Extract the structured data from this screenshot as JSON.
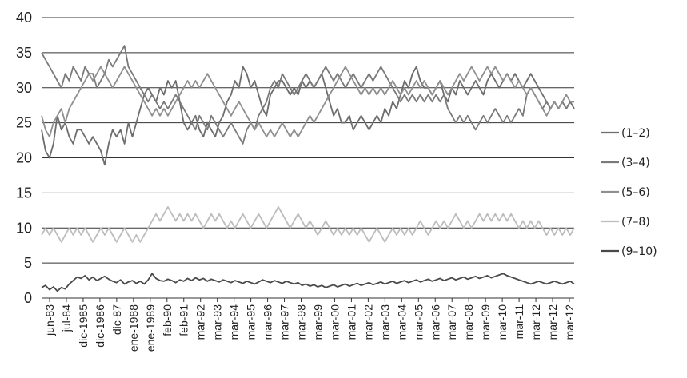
{
  "chart_data": {
    "type": "line",
    "title": "",
    "xlabel": "",
    "ylabel": "",
    "ylim": [
      0,
      40
    ],
    "yticks": [
      0,
      5,
      10,
      15,
      20,
      25,
      30,
      35,
      40
    ],
    "grid": true,
    "legend_position": "right",
    "x_tick_labels": [
      "jun-83",
      "jul-84",
      "dic-1985",
      "dic-1986",
      "dic-87",
      "ene-1988",
      "ene-1989",
      "feb-90",
      "feb-91",
      "mar-92",
      "mar-93",
      "mar-94",
      "mar-95",
      "mar-96",
      "mar-97",
      "mar-98",
      "mar-99",
      "mar-00",
      "mar-01",
      "mar-02",
      "mar-03",
      "mar-04",
      "mar-05",
      "mar-06",
      "mar-07",
      "mar-08",
      "mar-09",
      "mar-10",
      "mar-11",
      "mar-12",
      "mar-12",
      "mar-12"
    ],
    "series": [
      {
        "name": "(1–2)",
        "color": "#6d6d6d",
        "values": [
          24,
          21,
          20,
          22,
          26,
          24,
          25,
          23,
          22,
          24,
          24,
          23,
          22,
          23,
          22,
          21,
          19,
          22,
          24,
          23,
          24,
          22,
          25,
          23,
          25,
          27,
          29,
          30,
          29,
          28,
          30,
          29,
          31,
          30,
          31,
          28,
          25,
          24,
          25,
          26,
          24,
          23,
          25,
          24,
          23,
          25,
          26,
          28,
          29,
          31,
          30,
          33,
          32,
          30,
          31,
          29,
          27,
          26,
          29,
          30,
          31,
          31,
          30,
          29,
          30,
          29,
          31,
          30,
          31,
          30,
          31,
          32,
          30,
          28,
          26,
          27,
          25,
          25,
          26,
          24,
          25,
          26,
          25,
          24,
          25,
          26,
          25,
          27,
          26,
          28,
          27,
          29,
          31,
          30,
          32,
          33,
          31,
          30,
          30,
          29,
          30,
          31,
          29,
          28,
          30,
          29,
          31,
          30,
          29,
          30,
          31,
          30,
          29,
          31,
          32,
          31,
          30,
          31,
          32,
          31,
          32,
          31,
          30,
          31,
          32,
          31,
          30,
          29,
          28,
          27,
          28,
          27,
          28,
          27,
          28,
          27
        ]
      },
      {
        "name": "(3–4)",
        "color": "#7a7a7a",
        "values": [
          35,
          34,
          33,
          32,
          31,
          30,
          32,
          31,
          33,
          32,
          31,
          33,
          32,
          32,
          30,
          31,
          32,
          34,
          33,
          34,
          35,
          36,
          33,
          32,
          31,
          30,
          29,
          28,
          29,
          28,
          27,
          28,
          27,
          28,
          29,
          28,
          27,
          26,
          25,
          24,
          26,
          25,
          24,
          26,
          25,
          24,
          23,
          24,
          25,
          24,
          23,
          22,
          24,
          25,
          24,
          26,
          27,
          28,
          30,
          31,
          30,
          32,
          31,
          30,
          29,
          30,
          31,
          32,
          31,
          30,
          31,
          32,
          33,
          32,
          31,
          32,
          31,
          30,
          31,
          32,
          31,
          30,
          31,
          32,
          31,
          32,
          33,
          32,
          31,
          30,
          29,
          28,
          29,
          28,
          29,
          28,
          29,
          28,
          29,
          28,
          29,
          28,
          29,
          27,
          26,
          25,
          26,
          25,
          26,
          25,
          24,
          25,
          26,
          25,
          26,
          27,
          26,
          25,
          26,
          25,
          26,
          27,
          26,
          29,
          30,
          29,
          28,
          27,
          28,
          27,
          28,
          27,
          28,
          27,
          28,
          28
        ]
      },
      {
        "name": "(5–6)",
        "color": "#8f8f8f",
        "values": [
          26,
          24,
          23,
          25,
          26,
          27,
          25,
          27,
          28,
          29,
          30,
          31,
          32,
          31,
          32,
          33,
          32,
          31,
          30,
          31,
          32,
          33,
          32,
          31,
          30,
          29,
          28,
          27,
          26,
          27,
          26,
          27,
          26,
          27,
          28,
          29,
          30,
          31,
          30,
          31,
          30,
          31,
          32,
          31,
          30,
          29,
          28,
          27,
          26,
          27,
          28,
          27,
          26,
          25,
          24,
          25,
          24,
          23,
          24,
          23,
          24,
          25,
          24,
          23,
          24,
          23,
          24,
          25,
          26,
          25,
          26,
          27,
          28,
          29,
          30,
          31,
          32,
          33,
          32,
          31,
          30,
          29,
          30,
          29,
          30,
          29,
          30,
          29,
          30,
          31,
          30,
          29,
          30,
          29,
          30,
          31,
          30,
          31,
          30,
          29,
          30,
          31,
          30,
          29,
          30,
          31,
          32,
          31,
          32,
          33,
          32,
          31,
          32,
          33,
          32,
          33,
          32,
          31,
          32,
          31,
          30,
          31,
          30,
          29,
          30,
          29,
          28,
          27,
          26,
          27,
          28,
          27,
          28,
          29,
          28,
          28
        ]
      },
      {
        "name": "(7–8)",
        "color": "#bdbdbd",
        "values": [
          9,
          10,
          9,
          10,
          9,
          8,
          9,
          10,
          9,
          10,
          9,
          10,
          9,
          8,
          9,
          10,
          9,
          10,
          9,
          8,
          9,
          10,
          9,
          8,
          9,
          8,
          9,
          10,
          11,
          12,
          11,
          12,
          13,
          12,
          11,
          12,
          11,
          12,
          11,
          12,
          11,
          10,
          11,
          12,
          11,
          12,
          11,
          10,
          11,
          10,
          11,
          12,
          11,
          10,
          11,
          12,
          11,
          10,
          11,
          12,
          13,
          12,
          11,
          10,
          11,
          12,
          11,
          10,
          11,
          10,
          9,
          10,
          11,
          10,
          9,
          10,
          9,
          10,
          9,
          10,
          9,
          10,
          9,
          8,
          9,
          10,
          9,
          8,
          9,
          10,
          9,
          10,
          9,
          10,
          9,
          10,
          11,
          10,
          9,
          10,
          11,
          10,
          11,
          10,
          11,
          12,
          11,
          10,
          11,
          10,
          11,
          12,
          11,
          12,
          11,
          12,
          11,
          12,
          11,
          12,
          11,
          10,
          11,
          10,
          11,
          10,
          11,
          10,
          9,
          10,
          9,
          10,
          9,
          10,
          9,
          10
        ]
      },
      {
        "name": "(9–10)",
        "color": "#4a4a4a",
        "values": [
          1.5,
          1.8,
          1.2,
          1.6,
          1.0,
          1.5,
          1.3,
          2.0,
          2.5,
          3.0,
          2.8,
          3.2,
          2.6,
          3.0,
          2.5,
          2.8,
          3.1,
          2.7,
          2.4,
          2.2,
          2.6,
          2.0,
          2.3,
          2.5,
          2.1,
          2.4,
          2.0,
          2.6,
          3.5,
          2.8,
          2.5,
          2.4,
          2.7,
          2.5,
          2.2,
          2.6,
          2.4,
          2.8,
          2.5,
          2.9,
          2.6,
          2.8,
          2.4,
          2.7,
          2.5,
          2.3,
          2.6,
          2.4,
          2.2,
          2.5,
          2.3,
          2.1,
          2.4,
          2.2,
          2.0,
          2.3,
          2.6,
          2.4,
          2.2,
          2.5,
          2.3,
          2.1,
          2.4,
          2.2,
          2.0,
          2.2,
          1.8,
          2.0,
          1.7,
          1.9,
          1.6,
          1.8,
          1.5,
          1.7,
          1.9,
          1.6,
          1.8,
          2.0,
          1.7,
          1.9,
          2.1,
          1.8,
          2.0,
          2.2,
          1.9,
          2.1,
          2.3,
          2.0,
          2.2,
          2.4,
          2.1,
          2.3,
          2.5,
          2.2,
          2.4,
          2.6,
          2.3,
          2.5,
          2.7,
          2.4,
          2.6,
          2.8,
          2.5,
          2.7,
          2.9,
          2.6,
          2.8,
          3.0,
          2.7,
          2.9,
          3.1,
          2.8,
          3.0,
          3.2,
          2.9,
          3.1,
          3.3,
          3.5,
          3.2,
          3.0,
          2.8,
          2.6,
          2.4,
          2.2,
          2.0,
          2.2,
          2.4,
          2.2,
          2.0,
          2.2,
          2.4,
          2.2,
          2.0,
          2.2,
          2.4,
          2.0
        ]
      }
    ]
  }
}
